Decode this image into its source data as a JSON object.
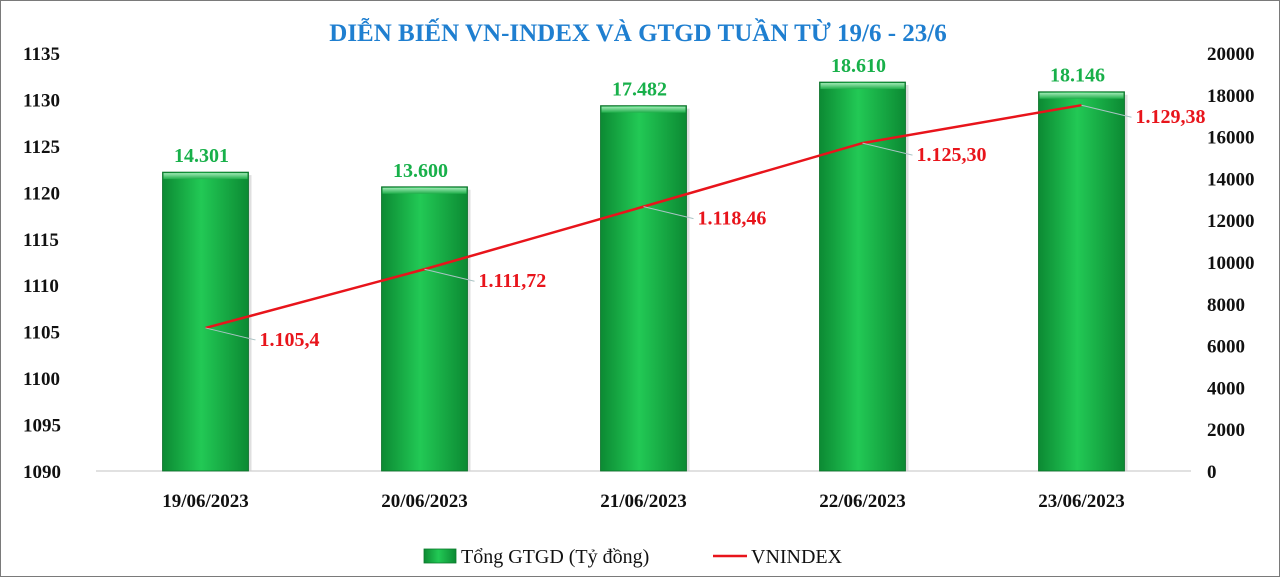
{
  "chart_data": {
    "type": "bar",
    "title": "DIỄN BIẾN VN-INDEX VÀ GTGD TUẦN TỪ 19/6 - 23/6",
    "categories": [
      "19/06/2023",
      "20/06/2023",
      "21/06/2023",
      "22/06/2023",
      "23/06/2023"
    ],
    "series": [
      {
        "name": "Tổng GTGD (Tỷ đồng)",
        "type": "bar",
        "axis": "right",
        "values": [
          14301,
          13600,
          17482,
          18610,
          18146
        ],
        "labels": [
          "14.301",
          "13.600",
          "17.482",
          "18.610",
          "18.146"
        ],
        "color": "#18b04a"
      },
      {
        "name": "VNINDEX",
        "type": "line",
        "axis": "left",
        "values": [
          1105.4,
          1111.72,
          1118.46,
          1125.3,
          1129.38
        ],
        "labels": [
          "1.105,4",
          "1.111,72",
          "1.118,46",
          "1.125,30",
          "1.129,38"
        ],
        "color": "#e8141b"
      }
    ],
    "y_left": {
      "range": [
        1090,
        1135
      ],
      "ticks": [
        "1090",
        "1095",
        "1100",
        "1105",
        "1110",
        "1115",
        "1120",
        "1125",
        "1130",
        "1135"
      ]
    },
    "y_right": {
      "range": [
        0,
        20000
      ],
      "ticks": [
        "0",
        "2000",
        "4000",
        "6000",
        "8000",
        "10000",
        "12000",
        "14000",
        "16000",
        "18000",
        "20000"
      ]
    },
    "grid": false,
    "legend": "bottom",
    "label_leader_color": "#a9c4c4",
    "title_color": "#1f7fd0"
  }
}
